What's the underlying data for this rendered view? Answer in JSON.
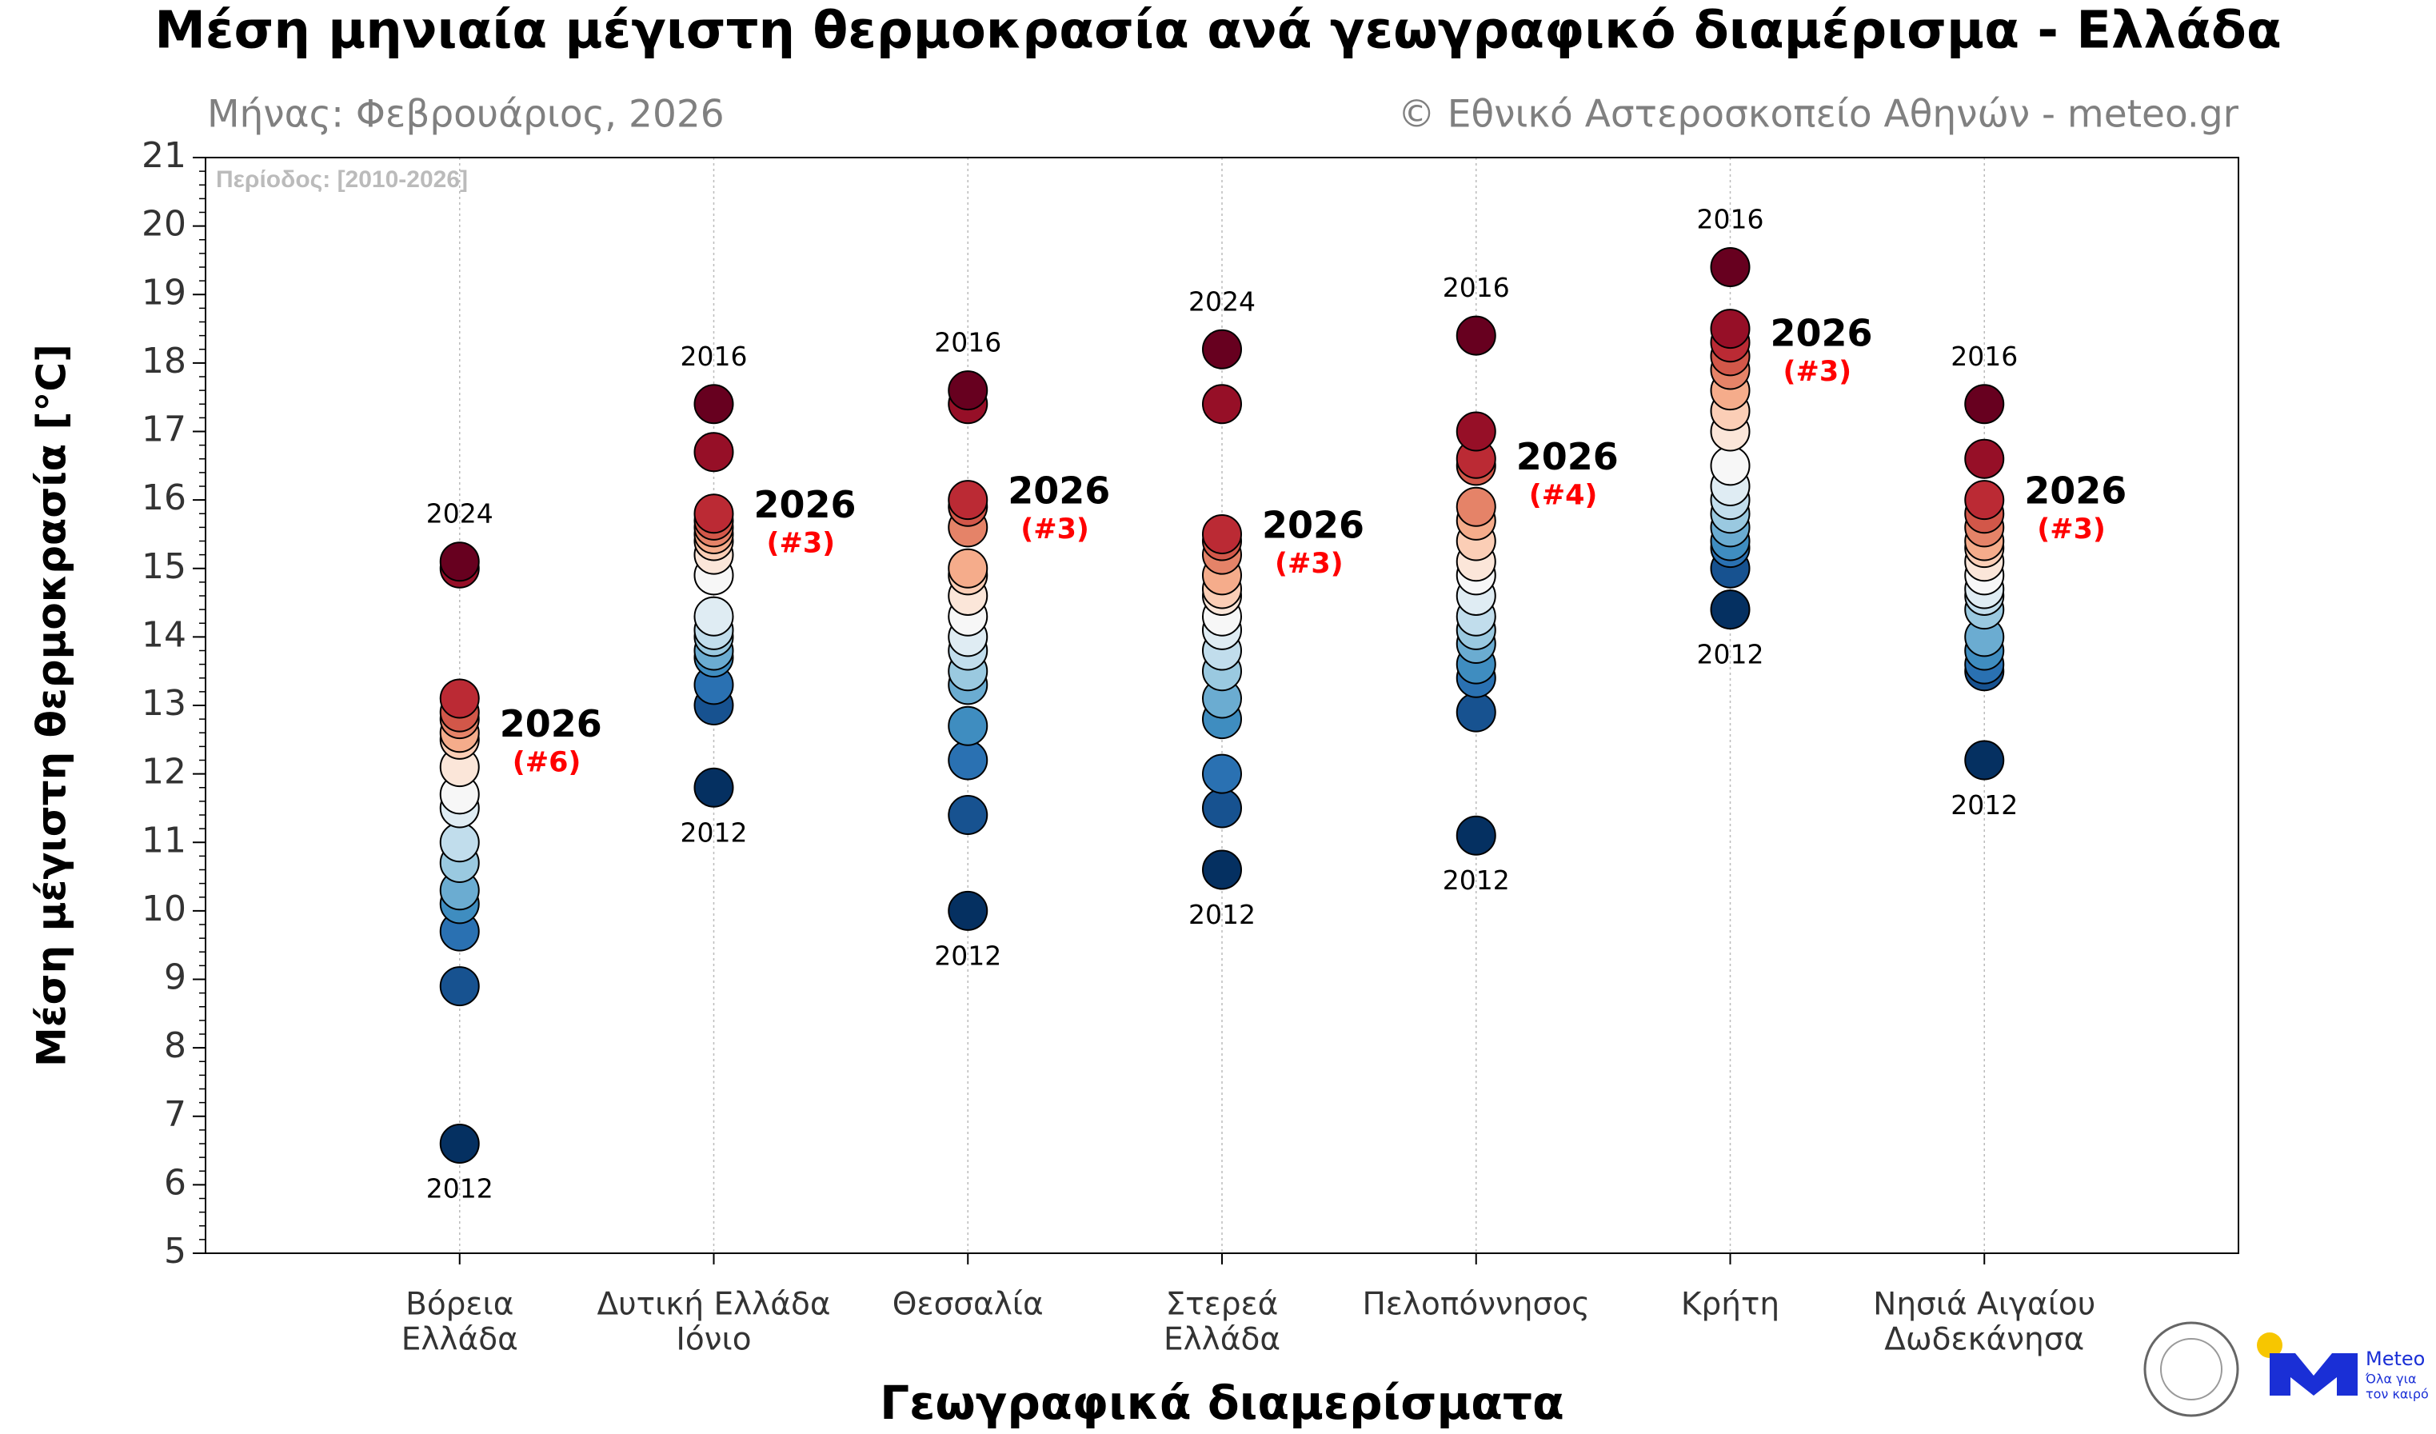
{
  "chart_data": {
    "type": "strip",
    "title": "Μέση μηνιαία μέγιστη θερμοκρασία ανά γεωγραφικό διαμέρισμα - Ελλάδα",
    "subtitle": "Μήνας: Φεβρουάριος, 2026",
    "credit": "© Εθνικό Αστεροσκοπείο Αθηνών - meteo.gr",
    "period": "Περίοδος: [2010-2026]",
    "ylabel": "Μέση μέγιστη θερμοκρασία [°C]",
    "xlabel": "Γεωγραφικά διαμερίσματα",
    "ylim": [
      5,
      21
    ],
    "yticks": [
      5,
      6,
      7,
      8,
      9,
      10,
      11,
      12,
      13,
      14,
      15,
      16,
      17,
      18,
      19,
      20,
      21
    ],
    "colormap": [
      "#67001f",
      "#b2182b",
      "#d6604d",
      "#f4a582",
      "#fddbc7",
      "#f7f7f7",
      "#d1e5f0",
      "#92c5de",
      "#4393c3",
      "#2166ac",
      "#053061"
    ],
    "highlight_color": "#ff0000",
    "groups": [
      {
        "name": [
          "Βόρεια",
          "Ελλάδα"
        ],
        "values": [
          15.1,
          15.0,
          13.1,
          12.9,
          12.8,
          12.6,
          12.5,
          12.1,
          11.7,
          11.5,
          11.0,
          10.7,
          10.3,
          10.1,
          9.7,
          8.9,
          6.6
        ],
        "max_year": "2024",
        "min_year": "2012",
        "current_year": "2026",
        "current_value": 12.6,
        "current_rank": "(#6)"
      },
      {
        "name": [
          "Δυτική Ελλάδα",
          "Ιόνιο"
        ],
        "values": [
          17.4,
          16.7,
          15.8,
          15.7,
          15.6,
          15.5,
          15.4,
          15.2,
          14.9,
          14.3,
          14.1,
          14.0,
          13.8,
          13.7,
          13.3,
          13.0,
          11.8
        ],
        "max_year": "2016",
        "min_year": "2012",
        "current_year": "2026",
        "current_value": 15.8,
        "current_rank": "(#3)"
      },
      {
        "name": [
          "Θεσσαλία"
        ],
        "values": [
          17.6,
          17.4,
          16.0,
          15.9,
          15.6,
          15.0,
          14.9,
          14.6,
          14.3,
          14.0,
          13.8,
          13.5,
          13.3,
          12.7,
          12.2,
          11.4,
          10.0
        ],
        "max_year": "2016",
        "min_year": "2012",
        "current_year": "2026",
        "current_value": 16.0,
        "current_rank": "(#3)"
      },
      {
        "name": [
          "Στερεά",
          "Ελλάδα"
        ],
        "values": [
          18.2,
          17.4,
          15.5,
          15.4,
          15.2,
          14.9,
          14.7,
          14.6,
          14.3,
          14.1,
          13.8,
          13.5,
          13.1,
          12.8,
          12.0,
          11.5,
          10.6
        ],
        "max_year": "2024",
        "min_year": "2012",
        "current_year": "2026",
        "current_value": 15.5,
        "current_rank": "(#3)"
      },
      {
        "name": [
          "Πελοπόννησος"
        ],
        "values": [
          18.4,
          17.0,
          16.6,
          16.5,
          15.9,
          15.7,
          15.4,
          15.1,
          14.9,
          14.6,
          14.3,
          14.1,
          13.9,
          13.6,
          13.4,
          12.9,
          11.1
        ],
        "max_year": "2016",
        "min_year": "2012",
        "current_year": "2026",
        "current_value": 16.5,
        "current_rank": "(#4)"
      },
      {
        "name": [
          "Κρήτη"
        ],
        "values": [
          19.4,
          18.5,
          18.3,
          18.1,
          17.9,
          17.6,
          17.3,
          17.0,
          16.5,
          16.2,
          16.0,
          15.8,
          15.6,
          15.4,
          15.3,
          15.0,
          14.4
        ],
        "max_year": "2016",
        "min_year": "2012",
        "current_year": "2026",
        "current_value": 18.3,
        "current_rank": "(#3)"
      },
      {
        "name": [
          "Νησιά Αιγαίου",
          "Δωδεκάνησα"
        ],
        "values": [
          17.4,
          16.6,
          16.0,
          15.8,
          15.6,
          15.4,
          15.3,
          15.1,
          14.9,
          14.7,
          14.6,
          14.4,
          14.0,
          13.8,
          13.6,
          13.5,
          12.2
        ],
        "max_year": "2016",
        "min_year": "2012",
        "current_year": "2026",
        "current_value": 16.0,
        "current_rank": "(#3)"
      }
    ]
  },
  "logo": {
    "name": "Meteo",
    "tagline": [
      "Όλα για",
      "τον καιρό"
    ]
  }
}
